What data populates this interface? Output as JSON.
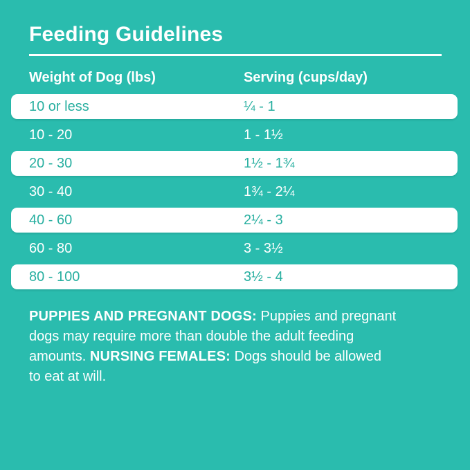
{
  "title": "Feeding Guidelines",
  "colors": {
    "background_teal": "#2ABCAE",
    "row_highlight_white": "#FFFFFF",
    "teal_text_on_white": "#28AFA0",
    "white_text": "#FFFFFF"
  },
  "table": {
    "col1_header": "Weight of Dog (lbs)",
    "col2_header": "Serving (cups/day)",
    "rows": [
      {
        "weight": "10 or less",
        "serving": "¼ - 1",
        "highlight": true
      },
      {
        "weight": "10 - 20",
        "serving": "1 - 1½",
        "highlight": false
      },
      {
        "weight": "20 - 30",
        "serving": "1½ - 1¾",
        "highlight": true
      },
      {
        "weight": "30 - 40",
        "serving": "1¾ - 2¼",
        "highlight": false
      },
      {
        "weight": "40 - 60",
        "serving": "2¼ - 3",
        "highlight": true
      },
      {
        "weight": "60 - 80",
        "serving": "3 - 3½",
        "highlight": false
      },
      {
        "weight": "80 - 100",
        "serving": "3½ - 4",
        "highlight": true
      }
    ]
  },
  "chart_data": {
    "type": "table",
    "title": "Feeding Guidelines",
    "columns": [
      "Weight of Dog (lbs)",
      "Serving (cups/day)"
    ],
    "rows": [
      [
        "10 or less",
        "¼ - 1"
      ],
      [
        "10 - 20",
        "1 - 1½"
      ],
      [
        "20 - 30",
        "1½ - 1¾"
      ],
      [
        "30 - 40",
        "1¾ - 2¼"
      ],
      [
        "40 - 60",
        "2¼ - 3"
      ],
      [
        "60 - 80",
        "3 - 3½"
      ],
      [
        "80 - 100",
        "3½ - 4"
      ]
    ]
  },
  "footer": {
    "lines": [
      {
        "seg0": "PUPPIES AND PREGNANT DOGS:",
        "seg1": " Puppies and pregnant"
      },
      {
        "seg0": "dogs may require more than double the adult feeding"
      },
      {
        "seg0": "amounts. ",
        "seg1": "NURSING FEMALES:",
        "seg2": " Dogs should be allowed"
      },
      {
        "seg0": "to eat at will."
      }
    ]
  }
}
